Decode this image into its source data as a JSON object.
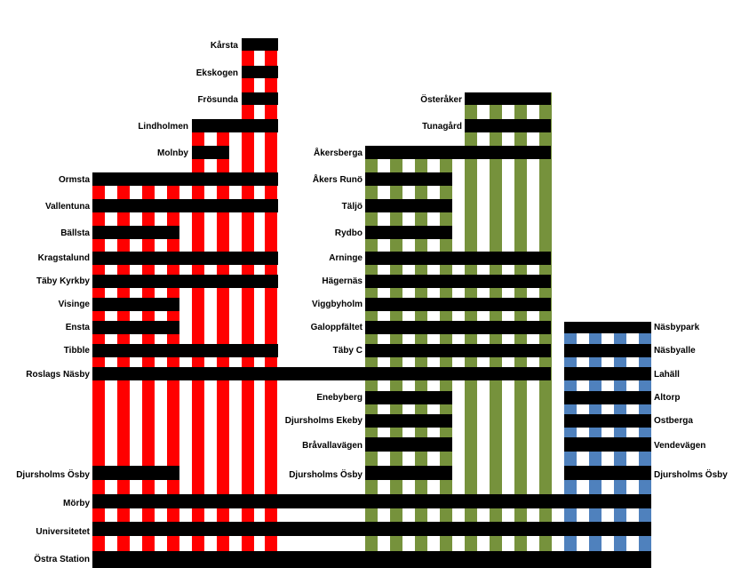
{
  "colors": {
    "red": "#ff0000",
    "green": "#76923c",
    "blue": "#4f81bd",
    "track": "#000000",
    "background": "#ffffff"
  },
  "branches": [
    {
      "name": "red",
      "color_key": "red",
      "label_side": "left",
      "stations": [
        "Kårsta",
        "Ekskogen",
        "Frösunda",
        "Lindholmen",
        "Molnby",
        "Ormsta",
        "Vallentuna",
        "Bällsta",
        "Kragstalund",
        "Täby Kyrkby",
        "Visinge",
        "Ensta",
        "Tibble",
        "Roslags Näsby",
        "Djursholms Ösby",
        "Mörby",
        "Universitetet",
        "Östra Station"
      ]
    },
    {
      "name": "green",
      "color_key": "green",
      "label_side": "left",
      "stations": [
        "Österåker",
        "Tunagård",
        "Åkersberga",
        "Åkers Runö",
        "Täljö",
        "Rydbo",
        "Arninge",
        "Hägernäs",
        "Viggbyholm",
        "Galoppfältet",
        "Täby C",
        "Enebyberg",
        "Djursholms Ekeby",
        "Bråvallavägen",
        "Djursholms Ösby"
      ]
    },
    {
      "name": "blue",
      "color_key": "blue",
      "label_side": "right",
      "stations": [
        "Näsbypark",
        "Näsbyalle",
        "Lahäll",
        "Altorp",
        "Ostberga",
        "Vendevägen",
        "Djursholms Ösby"
      ]
    }
  ]
}
